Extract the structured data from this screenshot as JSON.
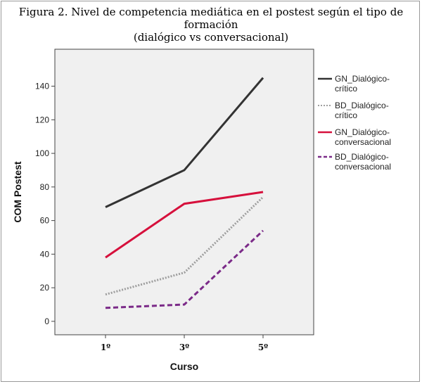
{
  "chart_data": {
    "type": "line",
    "title_line1": "Figura 2. Nivel de competencia mediática en el postest según el tipo de formación",
    "title_line2": "(dialógico vs conversacional)",
    "xlabel": "Curso",
    "ylabel": "COM Postest",
    "categories": [
      "1º",
      "3º",
      "5º"
    ],
    "ylim": [
      -8,
      162
    ],
    "yticks": [
      0,
      20,
      40,
      60,
      80,
      100,
      120,
      140
    ],
    "grid": false,
    "legend_position": "right",
    "series": [
      {
        "name": "GN_Dialógico-crítico",
        "label_lines": [
          "GN_Dialógico-",
          "crítico"
        ],
        "values": [
          68,
          90,
          145
        ],
        "color": "#333333",
        "dash": "solid"
      },
      {
        "name": "BD_Dialógico-crítico",
        "label_lines": [
          "BD_Dialógico-",
          "crítico"
        ],
        "values": [
          16,
          29,
          74
        ],
        "color": "#9e9e9e",
        "dash": "dotted"
      },
      {
        "name": "GN_Dialógico-conversacional",
        "label_lines": [
          "GN_Dialógico-",
          "conversacional"
        ],
        "values": [
          38,
          70,
          77
        ],
        "color": "#d6103c",
        "dash": "solid"
      },
      {
        "name": "BD_Dialógico-conversacional",
        "label_lines": [
          "BD_Dialógico-",
          "conversacional"
        ],
        "values": [
          8,
          10,
          54
        ],
        "color": "#7b2a88",
        "dash": "dashed"
      }
    ]
  }
}
